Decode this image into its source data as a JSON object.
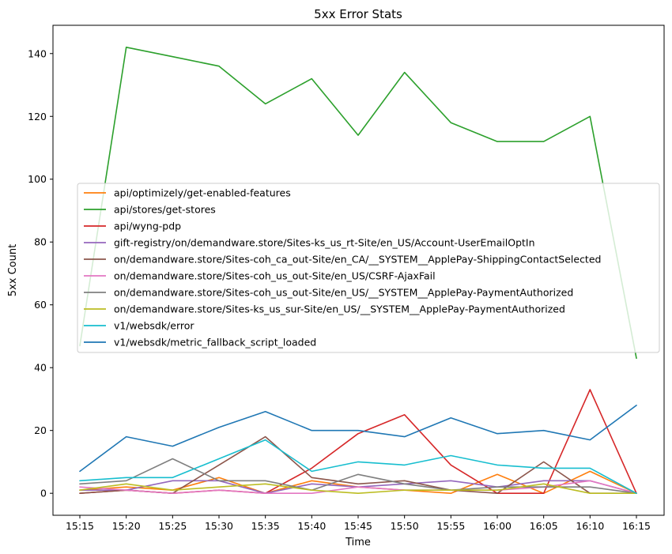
{
  "chart_data": {
    "type": "line",
    "title": "5xx Error Stats",
    "xlabel": "Time",
    "ylabel": "5xx Count",
    "x": [
      "15:15",
      "15:20",
      "15:25",
      "15:30",
      "15:35",
      "15:40",
      "15:45",
      "15:50",
      "15:55",
      "16:00",
      "16:05",
      "16:10",
      "16:15"
    ],
    "ylim": [
      -7,
      149
    ],
    "yticks": [
      0,
      20,
      40,
      60,
      80,
      100,
      120,
      140
    ],
    "grid": false,
    "legend_position": "center-left",
    "series": [
      {
        "name": "api/optimizely/get-enabled-features",
        "color": "#ff7f0e",
        "values": [
          1,
          2,
          1,
          5,
          0,
          4,
          2,
          1,
          0,
          6,
          0,
          7,
          0
        ]
      },
      {
        "name": "api/stores/get-stores",
        "color": "#2ca02c",
        "values": [
          47,
          142,
          139,
          136,
          124,
          132,
          114,
          134,
          118,
          112,
          112,
          120,
          43
        ]
      },
      {
        "name": "api/wyng-pdp",
        "color": "#d62728",
        "values": [
          0,
          1,
          0,
          1,
          0,
          8,
          19,
          25,
          9,
          0,
          0,
          33,
          0
        ]
      },
      {
        "name": "gift-registry/on/demandware.store/Sites-ks_us_rt-Site/en_US/Account-UserEmailOptIn",
        "color": "#9467bd",
        "values": [
          1,
          1,
          4,
          4,
          0,
          3,
          2,
          3,
          4,
          2,
          4,
          4,
          0
        ]
      },
      {
        "name": "on/demandware.store/Sites-coh_ca_out-Site/en_CA/__SYSTEM__ApplePay-ShippingContactSelected",
        "color": "#8c564b",
        "values": [
          0,
          1,
          0,
          9,
          18,
          5,
          3,
          4,
          1,
          0,
          10,
          0,
          0
        ]
      },
      {
        "name": "on/demandware.store/Sites-coh_us_out-Site/en_US/CSRF-AjaxFail",
        "color": "#e377c2",
        "values": [
          2,
          1,
          0,
          1,
          0,
          0,
          2,
          1,
          1,
          1,
          2,
          4,
          0
        ]
      },
      {
        "name": "on/demandware.store/Sites-coh_us_out-Site/en_US/__SYSTEM__ApplePay-PaymentAuthorized",
        "color": "#7f7f7f",
        "values": [
          3,
          4,
          11,
          4,
          4,
          1,
          6,
          3,
          1,
          2,
          2,
          2,
          0
        ]
      },
      {
        "name": "on/demandware.store/Sites-ks_us_sur-Site/en_US/__SYSTEM__ApplePay-PaymentAuthorized",
        "color": "#bcbd22",
        "values": [
          1,
          3,
          1,
          2,
          3,
          1,
          0,
          1,
          1,
          1,
          3,
          0,
          0
        ]
      },
      {
        "name": "v1/websdk/error",
        "color": "#17becf",
        "values": [
          4,
          5,
          5,
          11,
          17,
          7,
          10,
          9,
          12,
          9,
          8,
          8,
          0
        ]
      },
      {
        "name": "v1/websdk/metric_fallback_script_loaded",
        "color": "#1f77b4",
        "values": [
          7,
          18,
          15,
          21,
          26,
          20,
          20,
          18,
          24,
          19,
          20,
          17,
          28
        ]
      }
    ]
  }
}
